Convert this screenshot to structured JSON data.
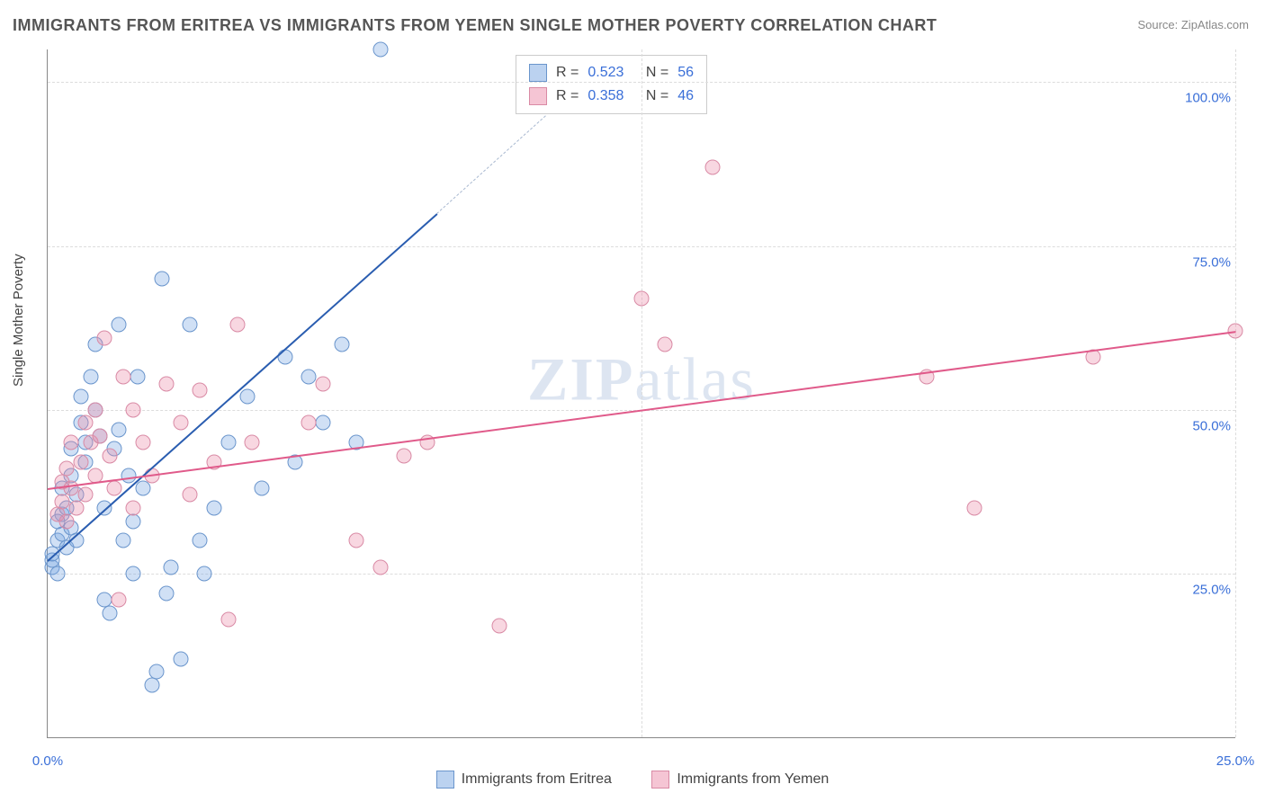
{
  "title": "IMMIGRANTS FROM ERITREA VS IMMIGRANTS FROM YEMEN SINGLE MOTHER POVERTY CORRELATION CHART",
  "source_prefix": "Source: ",
  "source": "ZipAtlas.com",
  "ylabel": "Single Mother Poverty",
  "watermark_left": "ZIP",
  "watermark_right": "atlas",
  "chart": {
    "type": "scatter",
    "xlim": [
      0,
      25
    ],
    "ylim": [
      0,
      105
    ],
    "x_ticks": [
      0,
      12.5,
      25
    ],
    "x_tick_labels": [
      "0.0%",
      "",
      "25.0%"
    ],
    "y_ticks": [
      25,
      50,
      75,
      100
    ],
    "y_tick_labels": [
      "25.0%",
      "50.0%",
      "75.0%",
      "100.0%"
    ],
    "grid_color": "#dcdcdc",
    "background": "#ffffff",
    "axis_color": "#888888",
    "marker_radius": 7.5,
    "series": [
      {
        "name": "Immigrants from Eritrea",
        "color_fill": "rgba(120,165,225,0.35)",
        "color_stroke": "#6a95cc",
        "trend_color": "#2a5db0",
        "R": "0.523",
        "N": "56",
        "trend": {
          "x1": 0,
          "y1": 27,
          "x2": 8.2,
          "y2": 80,
          "extend_x2": 10.5,
          "extend_y2": 95
        },
        "points": [
          [
            0.1,
            26
          ],
          [
            0.1,
            27
          ],
          [
            0.1,
            28
          ],
          [
            0.2,
            25
          ],
          [
            0.2,
            30
          ],
          [
            0.3,
            31
          ],
          [
            0.3,
            34
          ],
          [
            0.3,
            38
          ],
          [
            0.2,
            33
          ],
          [
            0.4,
            29
          ],
          [
            0.4,
            35
          ],
          [
            0.5,
            32
          ],
          [
            0.5,
            40
          ],
          [
            0.5,
            44
          ],
          [
            0.6,
            37
          ],
          [
            0.6,
            30
          ],
          [
            0.7,
            48
          ],
          [
            0.7,
            52
          ],
          [
            0.8,
            45
          ],
          [
            0.8,
            42
          ],
          [
            0.9,
            55
          ],
          [
            1.0,
            50
          ],
          [
            1.0,
            60
          ],
          [
            1.1,
            46
          ],
          [
            1.2,
            35
          ],
          [
            1.2,
            21
          ],
          [
            1.3,
            19
          ],
          [
            1.4,
            44
          ],
          [
            1.5,
            63
          ],
          [
            1.5,
            47
          ],
          [
            1.6,
            30
          ],
          [
            1.7,
            40
          ],
          [
            1.8,
            33
          ],
          [
            1.8,
            25
          ],
          [
            1.9,
            55
          ],
          [
            2.0,
            38
          ],
          [
            2.2,
            8
          ],
          [
            2.3,
            10
          ],
          [
            2.4,
            70
          ],
          [
            2.5,
            22
          ],
          [
            2.6,
            26
          ],
          [
            3.0,
            63
          ],
          [
            3.2,
            30
          ],
          [
            3.5,
            35
          ],
          [
            3.8,
            45
          ],
          [
            4.2,
            52
          ],
          [
            4.5,
            38
          ],
          [
            5.0,
            58
          ],
          [
            5.2,
            42
          ],
          [
            5.5,
            55
          ],
          [
            5.8,
            48
          ],
          [
            6.2,
            60
          ],
          [
            6.5,
            45
          ],
          [
            7.0,
            105
          ],
          [
            3.3,
            25
          ],
          [
            2.8,
            12
          ]
        ]
      },
      {
        "name": "Immigrants from Yemen",
        "color_fill": "rgba(235,140,170,0.35)",
        "color_stroke": "#d98aa5",
        "trend_color": "#e05a8a",
        "R": "0.358",
        "N": "46",
        "trend": {
          "x1": 0,
          "y1": 38,
          "x2": 25,
          "y2": 62
        },
        "points": [
          [
            0.2,
            34
          ],
          [
            0.3,
            36
          ],
          [
            0.3,
            39
          ],
          [
            0.4,
            33
          ],
          [
            0.4,
            41
          ],
          [
            0.5,
            38
          ],
          [
            0.5,
            45
          ],
          [
            0.6,
            35
          ],
          [
            0.7,
            42
          ],
          [
            0.8,
            48
          ],
          [
            0.8,
            37
          ],
          [
            0.9,
            45
          ],
          [
            1.0,
            40
          ],
          [
            1.0,
            50
          ],
          [
            1.1,
            46
          ],
          [
            1.2,
            61
          ],
          [
            1.3,
            43
          ],
          [
            1.4,
            38
          ],
          [
            1.5,
            21
          ],
          [
            1.6,
            55
          ],
          [
            1.8,
            50
          ],
          [
            1.8,
            35
          ],
          [
            2.0,
            45
          ],
          [
            2.2,
            40
          ],
          [
            2.5,
            54
          ],
          [
            2.8,
            48
          ],
          [
            3.0,
            37
          ],
          [
            3.2,
            53
          ],
          [
            3.5,
            42
          ],
          [
            3.8,
            18
          ],
          [
            4.0,
            63
          ],
          [
            4.3,
            45
          ],
          [
            5.5,
            48
          ],
          [
            5.8,
            54
          ],
          [
            6.5,
            30
          ],
          [
            7.0,
            26
          ],
          [
            7.5,
            43
          ],
          [
            8.0,
            45
          ],
          [
            9.5,
            17
          ],
          [
            12.5,
            67
          ],
          [
            13.0,
            60
          ],
          [
            14.0,
            87
          ],
          [
            18.5,
            55
          ],
          [
            19.5,
            35
          ],
          [
            22.0,
            58
          ],
          [
            25.0,
            62
          ]
        ]
      }
    ]
  },
  "legend_bottom": [
    {
      "swatch": "s0",
      "label": "Immigrants from Eritrea"
    },
    {
      "swatch": "s1",
      "label": "Immigrants from Yemen"
    }
  ]
}
